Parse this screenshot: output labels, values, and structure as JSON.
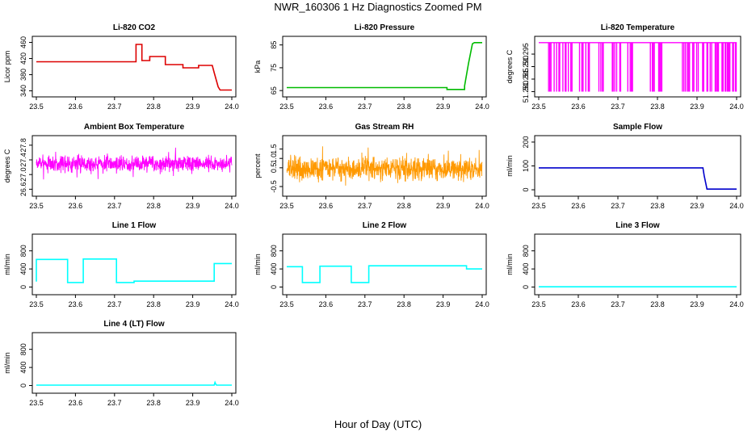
{
  "figure": {
    "title": "NWR_160306  1 Hz Diagnostics Zoomed PM",
    "xlabel": "Hour of Day (UTC)"
  },
  "chart_data": [
    {
      "type": "line",
      "title": "Li-820 CO2",
      "ylabel": "Licor ppm",
      "color": "#dd0000",
      "xlim": [
        23.5,
        24.0
      ],
      "ylim": [
        335,
        465
      ],
      "xticks": [
        "23.5",
        "23.6",
        "23.7",
        "23.8",
        "23.9",
        "24.0"
      ],
      "yticks": [
        "340",
        "380",
        "420",
        "460"
      ],
      "series": [
        {
          "x": [
            23.5,
            23.755,
            23.755,
            23.77,
            23.77,
            23.79,
            23.79,
            23.83,
            23.83,
            23.875,
            23.875,
            23.915,
            23.915,
            23.95,
            23.955,
            23.965,
            23.97,
            24.0
          ],
          "y": [
            412,
            412,
            455,
            455,
            415,
            415,
            425,
            425,
            405,
            405,
            397,
            397,
            403,
            403,
            385,
            350,
            342,
            342
          ]
        }
      ]
    },
    {
      "type": "line",
      "title": "Li-820 Pressure",
      "ylabel": "kPa",
      "color": "#00bb00",
      "xlim": [
        23.5,
        24.0
      ],
      "ylim": [
        64,
        87
      ],
      "xticks": [
        "23.5",
        "23.6",
        "23.7",
        "23.8",
        "23.9",
        "24.0"
      ],
      "yticks": [
        "65",
        "75",
        "85"
      ],
      "series": [
        {
          "x": [
            23.5,
            23.91,
            23.91,
            23.955,
            23.955,
            23.965,
            23.975,
            23.98,
            24.0
          ],
          "y": [
            66.3,
            66.3,
            65.5,
            65.5,
            67,
            77,
            85.5,
            86,
            86
          ]
        }
      ]
    },
    {
      "type": "line",
      "title": "Li-820 Temperature",
      "ylabel": "degrees C",
      "color": "#ff00ff",
      "xlim": [
        23.5,
        24.0
      ],
      "ylim": [
        51.2795,
        51.3005
      ],
      "xticks": [
        "23.5",
        "23.6",
        "23.7",
        "23.8",
        "23.9",
        "24.0"
      ],
      "yticks": [
        "51.280",
        "51.285",
        "51.290",
        "51.295"
      ],
      "baseline": 51.2996,
      "low": 51.28,
      "switch_x": [
        23.525,
        23.528,
        23.531,
        23.539,
        23.545,
        23.551,
        23.553,
        23.561,
        23.567,
        23.569,
        23.575,
        23.581,
        23.584,
        23.603,
        23.609,
        23.612,
        23.619,
        23.625,
        23.628,
        23.652,
        23.657,
        23.661,
        23.663,
        23.686,
        23.688,
        23.692,
        23.697,
        23.705,
        23.707,
        23.725,
        23.731,
        23.734,
        23.737,
        23.782,
        23.787,
        23.789,
        23.792,
        23.803,
        23.806,
        23.808,
        23.811,
        23.863,
        23.867,
        23.871,
        23.876,
        23.878,
        23.881,
        23.889,
        23.892,
        23.899,
        23.903,
        23.914,
        23.917,
        23.925,
        23.927,
        23.933,
        23.937,
        23.946,
        23.949,
        23.952,
        23.954,
        23.963,
        23.966,
        23.971,
        23.973,
        23.977,
        23.979,
        23.981,
        23.983,
        23.99,
        23.992,
        23.997,
        23.999
      ]
    },
    {
      "type": "line",
      "title": "Ambient Box Temperature",
      "ylabel": "degrees C",
      "color": "#ff00ff",
      "xlim": [
        23.5,
        24.0
      ],
      "ylim": [
        26.52,
        27.95
      ],
      "xticks": [
        "23.5",
        "23.6",
        "23.7",
        "23.8",
        "23.9",
        "24.0"
      ],
      "yticks": [
        "26.6",
        "27.0",
        "27.4",
        "27.8"
      ],
      "noise": {
        "center": 27.3,
        "amplitude": 0.4,
        "seed": 7
      }
    },
    {
      "type": "line",
      "title": "Gas Stream RH",
      "ylabel": "percent",
      "color": "#ff9900",
      "xlim": [
        23.5,
        24.0
      ],
      "ylim": [
        -0.8,
        2.0
      ],
      "xticks": [
        "23.5",
        "23.6",
        "23.7",
        "23.8",
        "23.9",
        "24.0"
      ],
      "yticks": [
        "-0.5",
        "0.5",
        "1.0",
        "1.5"
      ],
      "noise": {
        "center": 0.45,
        "amplitude": 1.1,
        "seed": 13
      }
    },
    {
      "type": "line",
      "title": "Sample Flow",
      "ylabel": "ml/min",
      "color": "#0000cc",
      "xlim": [
        23.5,
        24.0
      ],
      "ylim": [
        -10,
        210
      ],
      "xticks": [
        "23.5",
        "23.6",
        "23.7",
        "23.8",
        "23.9",
        "24.0"
      ],
      "yticks": [
        "0",
        "100",
        "200"
      ],
      "series": [
        {
          "x": [
            23.5,
            23.915,
            23.918,
            23.925,
            24.0
          ],
          "y": [
            92,
            92,
            60,
            3,
            3
          ]
        }
      ]
    },
    {
      "type": "line",
      "title": "Line 1 Flow",
      "ylabel": "ml/min",
      "color": "#00ffff",
      "xlim": [
        23.5,
        24.0
      ],
      "ylim": [
        -80,
        1080
      ],
      "xticks": [
        "23.5",
        "23.6",
        "23.7",
        "23.8",
        "23.9",
        "24.0"
      ],
      "yticks": [
        "0",
        "400",
        "800"
      ],
      "series": [
        {
          "x": [
            23.5,
            23.5,
            23.58,
            23.58,
            23.62,
            23.62,
            23.705,
            23.705,
            23.75,
            23.75,
            23.955,
            23.955,
            24.0
          ],
          "y": [
            120,
            610,
            610,
            100,
            100,
            620,
            620,
            100,
            100,
            130,
            130,
            520,
            520
          ]
        }
      ]
    },
    {
      "type": "line",
      "title": "Line 2 Flow",
      "ylabel": "ml/min",
      "color": "#00ffff",
      "xlim": [
        23.5,
        24.0
      ],
      "ylim": [
        -80,
        1080
      ],
      "xticks": [
        "23.5",
        "23.6",
        "23.7",
        "23.8",
        "23.9",
        "24.0"
      ],
      "yticks": [
        "0",
        "400",
        "800"
      ],
      "series": [
        {
          "x": [
            23.5,
            23.54,
            23.54,
            23.585,
            23.585,
            23.665,
            23.665,
            23.71,
            23.71,
            23.96,
            23.96,
            24.0
          ],
          "y": [
            450,
            450,
            100,
            100,
            460,
            460,
            100,
            100,
            470,
            470,
            400,
            400
          ]
        }
      ]
    },
    {
      "type": "line",
      "title": "Line 3 Flow",
      "ylabel": "ml/min",
      "color": "#00ffff",
      "xlim": [
        23.5,
        24.0
      ],
      "ylim": [
        -80,
        1080
      ],
      "xticks": [
        "23.5",
        "23.6",
        "23.7",
        "23.8",
        "23.9",
        "24.0"
      ],
      "yticks": [
        "0",
        "400",
        "800"
      ],
      "series": [
        {
          "x": [
            23.5,
            24.0
          ],
          "y": [
            5,
            5
          ]
        }
      ]
    },
    {
      "type": "line",
      "title": "Line 4 (LT) Flow",
      "ylabel": "ml/min",
      "color": "#00ffff",
      "xlim": [
        23.5,
        24.0
      ],
      "ylim": [
        -80,
        1080
      ],
      "xticks": [
        "23.5",
        "23.6",
        "23.7",
        "23.8",
        "23.9",
        "24.0"
      ],
      "yticks": [
        "0",
        "400",
        "800"
      ],
      "series": [
        {
          "x": [
            23.5,
            23.955,
            23.957,
            23.959,
            23.961,
            24.0
          ],
          "y": [
            10,
            10,
            70,
            30,
            10,
            10
          ]
        }
      ]
    }
  ]
}
